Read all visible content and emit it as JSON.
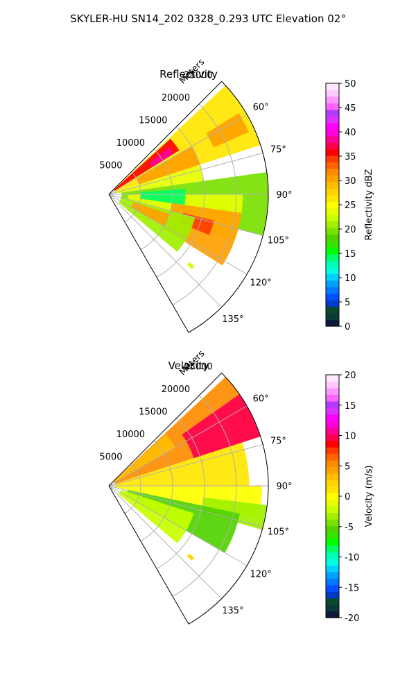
{
  "figure": {
    "title": "SKYLER-HU  SN14_202  0328_0.293 UTC Elevation 02°"
  },
  "chart_data": [
    {
      "type": "heatmap",
      "subtype": "radar-ppi-sector",
      "title": "Reflectivity",
      "range_axis_label": "Meters",
      "range_ticks": [
        5000,
        10000,
        15000,
        20000,
        25000
      ],
      "range_tick_labels": [
        "5000",
        "10000",
        "15000",
        "20000",
        "25000"
      ],
      "range_max": 25000,
      "azimuth_range_deg": [
        45,
        150
      ],
      "azimuth_ticks_deg": [
        60,
        75,
        90,
        105,
        120,
        135
      ],
      "azimuth_tick_labels": [
        "60°",
        "75°",
        "90°",
        "105°",
        "120°",
        "135°"
      ],
      "grid": true,
      "colorbar": {
        "label": "Reflectivity dBZ",
        "vmin": 0,
        "vmax": 50,
        "ticks": [
          0,
          5,
          10,
          15,
          20,
          25,
          30,
          35,
          40,
          45,
          50
        ],
        "tick_labels": [
          "0",
          "5",
          "10",
          "15",
          "20",
          "25",
          "30",
          "35",
          "40",
          "45",
          "50"
        ],
        "colors": [
          "#0b1a3a",
          "#0b3a3a",
          "#0a4a2a",
          "#003cc8",
          "#0050ff",
          "#0078ff",
          "#00a0ff",
          "#00d2ff",
          "#00ffe0",
          "#00ffb4",
          "#00ff64",
          "#00ff00",
          "#32e600",
          "#50d200",
          "#78e100",
          "#a0f000",
          "#c8ff00",
          "#e6ff00",
          "#ffff00",
          "#ffe600",
          "#ffd200",
          "#ffbe00",
          "#ffa000",
          "#ff8c00",
          "#ff6400",
          "#ff3c00",
          "#ff0000",
          "#ff0050",
          "#ff0096",
          "#ff00dc",
          "#ff00ff",
          "#dc32ff",
          "#b43cff",
          "#ff64ff",
          "#ff96ff",
          "#ffc8ff",
          "#ffe6ff"
        ]
      },
      "regions": [
        {
          "az": [
            47,
            72
          ],
          "r": [
            1000,
            26000
          ],
          "value": 27
        },
        {
          "az": [
            60,
            72
          ],
          "r": [
            5000,
            15000
          ],
          "value": 31
        },
        {
          "az": [
            58,
            66
          ],
          "r": [
            18000,
            24000
          ],
          "value": 30
        },
        {
          "az": [
            48,
            58
          ],
          "r": [
            1000,
            13000
          ],
          "value": 36
        },
        {
          "az": [
            52,
            58
          ],
          "r": [
            8000,
            12000
          ],
          "value": 38
        },
        {
          "az": [
            72,
            82
          ],
          "r": [
            1000,
            15000
          ],
          "value": 24
        },
        {
          "az": [
            82,
            105
          ],
          "r": [
            2000,
            25000
          ],
          "value": 20
        },
        {
          "az": [
            90,
            110
          ],
          "r": [
            3000,
            21000
          ],
          "value": 24
        },
        {
          "az": [
            86,
            98
          ],
          "r": [
            5000,
            12000
          ],
          "value": 14
        },
        {
          "az": [
            98,
            122
          ],
          "r": [
            10000,
            21000
          ],
          "value": 30
        },
        {
          "az": [
            104,
            112
          ],
          "r": [
            12000,
            17000
          ],
          "value": 34
        },
        {
          "az": [
            105,
            130
          ],
          "r": [
            2000,
            14000
          ],
          "value": 21
        },
        {
          "az": [
            108,
            120
          ],
          "r": [
            4000,
            10000
          ],
          "value": 30
        },
        {
          "az": [
            130,
            132
          ],
          "r": [
            16500,
            17500
          ],
          "value": 22
        }
      ]
    },
    {
      "type": "heatmap",
      "subtype": "radar-ppi-sector",
      "title": "Velocity",
      "range_axis_label": "Meters",
      "range_ticks": [
        5000,
        10000,
        15000,
        20000,
        25000
      ],
      "range_tick_labels": [
        "5000",
        "10000",
        "15000",
        "20000",
        "25000"
      ],
      "range_max": 25000,
      "azimuth_range_deg": [
        45,
        150
      ],
      "azimuth_ticks_deg": [
        60,
        75,
        90,
        105,
        120,
        135
      ],
      "azimuth_tick_labels": [
        "60°",
        "75°",
        "90°",
        "105°",
        "120°",
        "135°"
      ],
      "grid": true,
      "colorbar": {
        "label": "Velocity (m/s)",
        "vmin": -20,
        "vmax": 20,
        "ticks": [
          -20,
          -15,
          -10,
          -5,
          0,
          5,
          10,
          15,
          20
        ],
        "tick_labels": [
          "-20",
          "-15",
          "-10",
          "-5",
          "0",
          "5",
          "10",
          "15",
          "20"
        ],
        "colors": [
          "#0b1a3a",
          "#0b3a3a",
          "#0a4a2a",
          "#003cc8",
          "#0050ff",
          "#0078ff",
          "#00a0ff",
          "#00d2ff",
          "#00ffe0",
          "#00ffb4",
          "#00ff64",
          "#00ff00",
          "#32e600",
          "#50d200",
          "#78e100",
          "#a0f000",
          "#c8ff00",
          "#e6ff00",
          "#ffff00",
          "#ffe600",
          "#ffd200",
          "#ffbe00",
          "#ffa000",
          "#ff8c00",
          "#ff6400",
          "#ff3c00",
          "#ff0000",
          "#ff0050",
          "#ff0096",
          "#ff00dc",
          "#ff00ff",
          "#dc32ff",
          "#b43cff",
          "#ff64ff",
          "#ff96ff",
          "#ffc8ff",
          "#ffe6ff"
        ]
      },
      "regions": [
        {
          "az": [
            47,
            72
          ],
          "r": [
            1000,
            26000
          ],
          "value": 5
        },
        {
          "az": [
            55,
            72
          ],
          "r": [
            14000,
            26000
          ],
          "value": 10
        },
        {
          "az": [
            48,
            60
          ],
          "r": [
            1000,
            12000
          ],
          "value": 3
        },
        {
          "az": [
            72,
            90
          ],
          "r": [
            1000,
            22000
          ],
          "value": 1
        },
        {
          "az": [
            90,
            102
          ],
          "r": [
            1000,
            24000
          ],
          "value": 0
        },
        {
          "az": [
            97,
            106
          ],
          "r": [
            15000,
            25000
          ],
          "value": -3
        },
        {
          "az": [
            102,
            120
          ],
          "r": [
            3000,
            21000
          ],
          "value": -5
        },
        {
          "az": [
            108,
            130
          ],
          "r": [
            2000,
            14000
          ],
          "value": -2
        },
        {
          "az": [
            130,
            132
          ],
          "r": [
            16500,
            17500
          ],
          "value": 2
        }
      ]
    }
  ]
}
